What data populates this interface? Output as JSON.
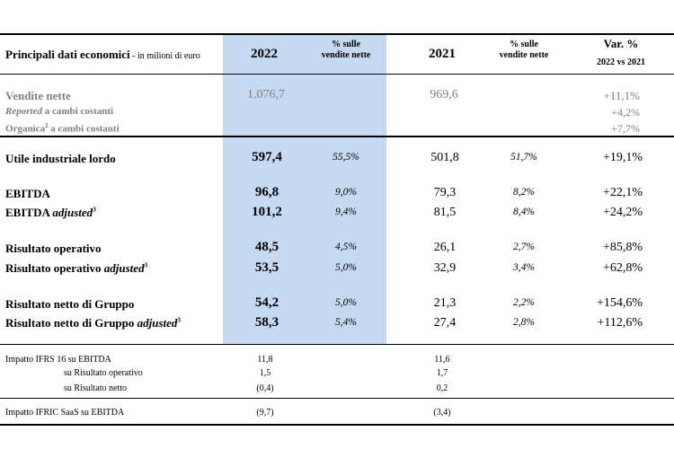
{
  "header": {
    "title": "Principali dati economici",
    "subtitle": " - in milioni di euro",
    "year_current": "2022",
    "pct_label_line1": "% sulle",
    "pct_label_line2": "vendite nette",
    "year_prev": "2021",
    "var_label": "Var. %",
    "var_sub": "2022 vs 2021"
  },
  "sales": [
    {
      "label": "Vendite nette",
      "v2022": "1.076,7",
      "v2021": "969,6",
      "var": "+11,1%"
    },
    {
      "label_italic": "Reported",
      "label_rest": " a cambi costanti",
      "var": "+4,2%"
    },
    {
      "label": "Organica",
      "sup": "2",
      "label_rest": " a cambi costanti",
      "var": "+7,7%"
    }
  ],
  "rows": [
    {
      "label": "Utile industriale lordo",
      "v2022": "597,4",
      "p2022": "55,5%",
      "v2021": "501,8",
      "p2021": "51,7%",
      "var": "+19,1%"
    },
    {
      "label": "EBITDA",
      "v2022": "96,8",
      "p2022": "9,0%",
      "v2021": "79,3",
      "p2021": "8,2%",
      "var": "+22,1%"
    },
    {
      "label": "EBITDA",
      "label_italic": "adjusted",
      "sup": "3",
      "v2022": "101,2",
      "p2022": "9,4%",
      "v2021": "81,5",
      "p2021": "8,4%",
      "var": "+24,2%"
    },
    {
      "label": "Risultato operativo",
      "v2022": "48,5",
      "p2022": "4,5%",
      "v2021": "26,1",
      "p2021": "2,7%",
      "var": "+85,8%"
    },
    {
      "label": "Risultato operativo",
      "label_italic": "adjusted",
      "sup": "3",
      "v2022": "53,5",
      "p2022": "5,0%",
      "v2021": "32,9",
      "p2021": "3,4%",
      "var": "+62,8%"
    },
    {
      "label": "Risultato netto di Gruppo",
      "v2022": "54,2",
      "p2022": "5,0%",
      "v2021": "21,3",
      "p2021": "2,2%",
      "var": "+154,6%"
    },
    {
      "label": "Risultato netto di Gruppo",
      "label_italic": "adjusted",
      "sup": "3",
      "v2022": "58,3",
      "p2022": "5,4%",
      "v2021": "27,4",
      "p2021": "2,8%",
      "var": "+112,6%"
    }
  ],
  "ifrs": [
    {
      "label": "Impatto IFRS 16 su EBITDA",
      "v2022": "11,8",
      "v2021": "11,6"
    },
    {
      "label": "su Risultato operativo",
      "v2022": "1,5",
      "v2021": "1,7"
    },
    {
      "label": "su Risultato netto",
      "v2022": "(0,4)",
      "v2021": "0,2"
    }
  ],
  "ifric": {
    "label": "Impatto IFRIC SaaS su EBITDA",
    "v2022": "(9,7)",
    "v2021": "(3,4)"
  }
}
